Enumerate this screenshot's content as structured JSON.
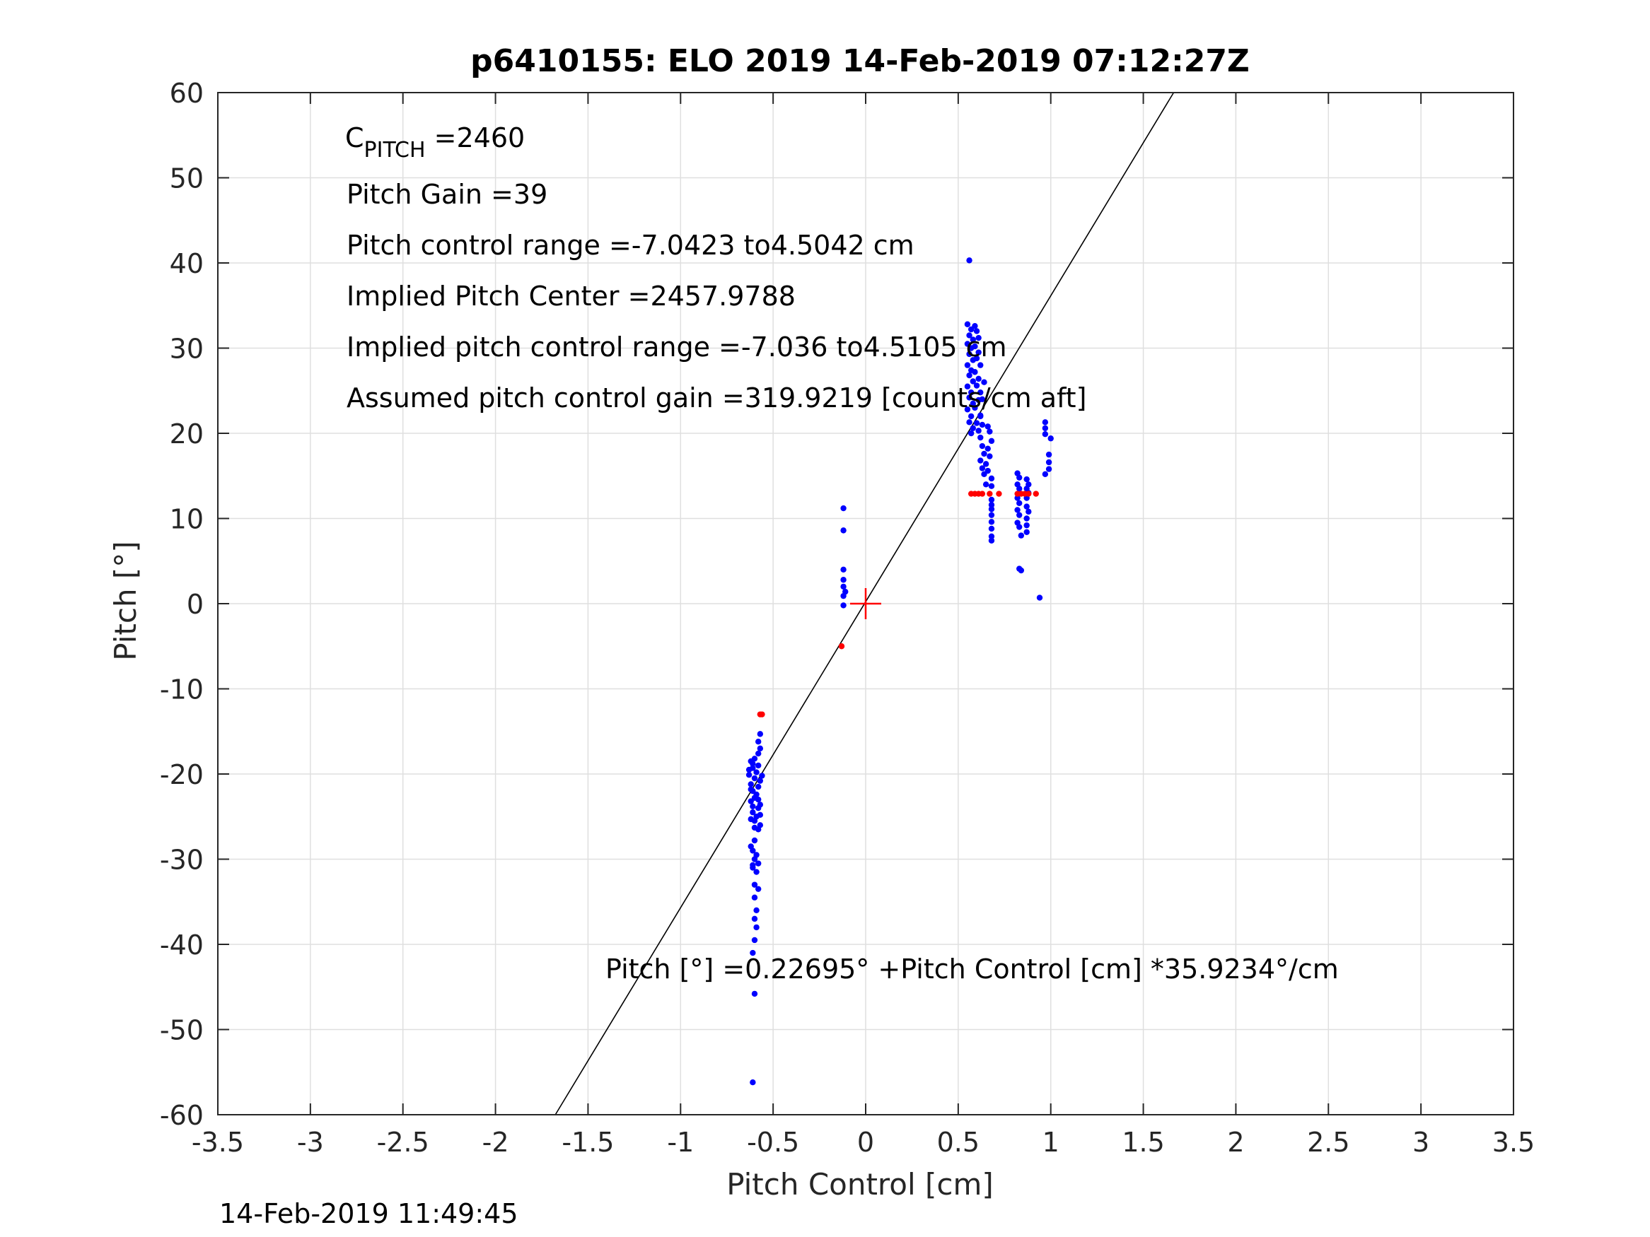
{
  "chart_data": {
    "type": "scatter",
    "title": "p6410155: ELO 2019 14-Feb-2019 07:12:27Z",
    "xlabel": "Pitch Control [cm]",
    "ylabel": "Pitch [°]",
    "xlim": [
      -3.5,
      3.5
    ],
    "ylim": [
      -60,
      60
    ],
    "xticks": [
      -3.5,
      -3,
      -2.5,
      -2,
      -1.5,
      -1,
      -0.5,
      0,
      0.5,
      1,
      1.5,
      2,
      2.5,
      3,
      3.5
    ],
    "xtick_labels": [
      "-3.5",
      "-3",
      "-2.5",
      "-2",
      "-1.5",
      "-1",
      "-0.5",
      "0",
      "0.5",
      "1",
      "1.5",
      "2",
      "2.5",
      "3",
      "3.5"
    ],
    "yticks": [
      -60,
      -50,
      -40,
      -30,
      -20,
      -10,
      0,
      10,
      20,
      30,
      40,
      50,
      60
    ],
    "ytick_labels": [
      "-60",
      "-50",
      "-40",
      "-30",
      "-20",
      "-10",
      "0",
      "10",
      "20",
      "30",
      "40",
      "50",
      "60"
    ],
    "grid": true,
    "annotations": {
      "c_pitch_main": "C",
      "c_pitch_sub": "PITCH",
      "c_pitch_value": " =2460",
      "pitch_gain": "Pitch Gain =39",
      "pitch_control_range": "Pitch control range =-7.0423 to4.5042 cm",
      "implied_pitch_center": "Implied Pitch Center =2457.9788",
      "implied_pitch_control_range": "Implied pitch control range =-7.036 to4.5105 cm",
      "assumed_pitch_control_gain": "Assumed pitch control gain =319.9219 [counts/cm aft]",
      "fit_equation": "Pitch [°] =0.22695° +Pitch Control [cm] *35.9234°/cm"
    },
    "fit_line": {
      "intercept": 0.22695,
      "slope": 35.9234,
      "color": "#000000"
    },
    "center_marker": {
      "x": 0,
      "y": 0,
      "color": "#ff0000"
    },
    "series": [
      {
        "color": "#0000ff",
        "points": [
          [
            -0.6,
            -18.2
          ],
          [
            -0.62,
            -18.5
          ],
          [
            -0.58,
            -19.0
          ],
          [
            -0.61,
            -19.3
          ],
          [
            -0.59,
            -19.8
          ],
          [
            -0.63,
            -20.1
          ],
          [
            -0.6,
            -20.5
          ],
          [
            -0.57,
            -20.8
          ],
          [
            -0.62,
            -21.2
          ],
          [
            -0.58,
            -21.5
          ],
          [
            -0.61,
            -22.0
          ],
          [
            -0.59,
            -22.4
          ],
          [
            -0.6,
            -22.8
          ],
          [
            -0.62,
            -23.2
          ],
          [
            -0.57,
            -23.6
          ],
          [
            -0.58,
            -24.0
          ],
          [
            -0.61,
            -24.5
          ],
          [
            -0.59,
            -25.0
          ],
          [
            -0.6,
            -25.5
          ],
          [
            -0.57,
            -26.0
          ],
          [
            -0.58,
            -26.5
          ],
          [
            -0.6,
            -27.8
          ],
          [
            -0.61,
            -29.0
          ],
          [
            -0.59,
            -29.5
          ],
          [
            -0.6,
            -30.0
          ],
          [
            -0.58,
            -30.5
          ],
          [
            -0.61,
            -31.0
          ],
          [
            -0.59,
            -31.5
          ],
          [
            -0.6,
            -33.0
          ],
          [
            -0.58,
            -33.5
          ],
          [
            -0.6,
            -34.5
          ],
          [
            -0.59,
            -36.0
          ],
          [
            -0.6,
            -37.0
          ],
          [
            -0.59,
            -38.0
          ],
          [
            -0.6,
            -39.5
          ],
          [
            -0.61,
            -41.0
          ],
          [
            -0.6,
            -45.8
          ],
          [
            -0.61,
            -56.2
          ],
          [
            -0.57,
            -15.3
          ],
          [
            -0.58,
            -16.2
          ],
          [
            -0.57,
            -17.0
          ],
          [
            -0.58,
            -17.6
          ],
          [
            -0.61,
            -18.8
          ],
          [
            -0.63,
            -19.5
          ],
          [
            -0.56,
            -20.2
          ],
          [
            -0.62,
            -21.8
          ],
          [
            -0.58,
            -23.0
          ],
          [
            -0.61,
            -23.8
          ],
          [
            -0.57,
            -24.8
          ],
          [
            -0.62,
            -25.3
          ],
          [
            -0.6,
            -26.3
          ],
          [
            -0.61,
            -30.7
          ],
          [
            -0.62,
            -28.5
          ],
          [
            -0.12,
            11.2
          ],
          [
            -0.12,
            8.6
          ],
          [
            -0.12,
            4.0
          ],
          [
            -0.12,
            2.8
          ],
          [
            -0.12,
            2.0
          ],
          [
            -0.11,
            1.4
          ],
          [
            -0.12,
            0.9
          ],
          [
            -0.12,
            -0.2
          ],
          [
            0.56,
            40.3
          ],
          [
            0.55,
            32.8
          ],
          [
            0.57,
            32.2
          ],
          [
            0.56,
            31.5
          ],
          [
            0.58,
            31.0
          ],
          [
            0.55,
            30.5
          ],
          [
            0.57,
            30.0
          ],
          [
            0.56,
            29.3
          ],
          [
            0.58,
            28.6
          ],
          [
            0.55,
            28.0
          ],
          [
            0.57,
            27.4
          ],
          [
            0.56,
            26.8
          ],
          [
            0.58,
            26.1
          ],
          [
            0.55,
            25.5
          ],
          [
            0.57,
            24.8
          ],
          [
            0.56,
            24.2
          ],
          [
            0.58,
            23.5
          ],
          [
            0.55,
            22.8
          ],
          [
            0.57,
            22.0
          ],
          [
            0.56,
            21.3
          ],
          [
            0.58,
            20.6
          ],
          [
            0.57,
            20.0
          ],
          [
            0.59,
            32.6
          ],
          [
            0.6,
            32.0
          ],
          [
            0.61,
            31.2
          ],
          [
            0.59,
            30.2
          ],
          [
            0.61,
            29.5
          ],
          [
            0.6,
            28.8
          ],
          [
            0.62,
            28.0
          ],
          [
            0.59,
            27.2
          ],
          [
            0.61,
            26.4
          ],
          [
            0.6,
            25.6
          ],
          [
            0.62,
            24.8
          ],
          [
            0.61,
            23.9
          ],
          [
            0.59,
            23.0
          ],
          [
            0.62,
            22.1
          ],
          [
            0.6,
            21.2
          ],
          [
            0.61,
            20.3
          ],
          [
            0.64,
            26.0
          ],
          [
            0.63,
            24.0
          ],
          [
            0.62,
            22.0
          ],
          [
            0.63,
            21.0
          ],
          [
            0.62,
            19.5
          ],
          [
            0.63,
            18.5
          ],
          [
            0.64,
            17.6
          ],
          [
            0.62,
            16.8
          ],
          [
            0.63,
            15.9
          ],
          [
            0.64,
            15.2
          ],
          [
            0.65,
            14.0
          ],
          [
            0.66,
            20.8
          ],
          [
            0.67,
            20.2
          ],
          [
            0.68,
            19.1
          ],
          [
            0.66,
            18.2
          ],
          [
            0.67,
            17.3
          ],
          [
            0.65,
            16.4
          ],
          [
            0.66,
            15.6
          ],
          [
            0.68,
            14.7
          ],
          [
            0.68,
            13.8
          ],
          [
            0.68,
            12.2
          ],
          [
            0.68,
            11.6
          ],
          [
            0.68,
            11.1
          ],
          [
            0.68,
            10.4
          ],
          [
            0.68,
            9.6
          ],
          [
            0.68,
            8.8
          ],
          [
            0.68,
            7.9
          ],
          [
            0.68,
            7.4
          ],
          [
            0.82,
            15.3
          ],
          [
            0.83,
            14.8
          ],
          [
            0.82,
            14.0
          ],
          [
            0.83,
            13.5
          ],
          [
            0.82,
            12.4
          ],
          [
            0.83,
            11.8
          ],
          [
            0.82,
            11.0
          ],
          [
            0.83,
            10.4
          ],
          [
            0.82,
            9.5
          ],
          [
            0.83,
            9.0
          ],
          [
            0.84,
            8.0
          ],
          [
            0.83,
            4.1
          ],
          [
            0.84,
            3.9
          ],
          [
            0.87,
            14.6
          ],
          [
            0.88,
            14.0
          ],
          [
            0.87,
            13.5
          ],
          [
            0.88,
            13.0
          ],
          [
            0.87,
            12.4
          ],
          [
            0.87,
            11.4
          ],
          [
            0.88,
            10.8
          ],
          [
            0.87,
            10.0
          ],
          [
            0.87,
            9.2
          ],
          [
            0.87,
            8.4
          ],
          [
            0.94,
            0.7
          ],
          [
            0.97,
            21.3
          ],
          [
            0.97,
            20.6
          ],
          [
            0.97,
            19.9
          ],
          [
            1.0,
            19.4
          ],
          [
            0.99,
            17.5
          ],
          [
            0.99,
            16.6
          ],
          [
            0.99,
            15.8
          ],
          [
            0.97,
            15.2
          ]
        ]
      },
      {
        "color": "#ff0000",
        "points": [
          [
            -0.57,
            -13.0
          ],
          [
            -0.56,
            -13.0
          ],
          [
            -0.13,
            -5.0
          ],
          [
            0.57,
            12.9
          ],
          [
            0.59,
            12.9
          ],
          [
            0.61,
            12.9
          ],
          [
            0.63,
            12.9
          ],
          [
            0.67,
            12.9
          ],
          [
            0.72,
            12.9
          ],
          [
            0.82,
            12.9
          ],
          [
            0.84,
            12.9
          ],
          [
            0.86,
            12.9
          ],
          [
            0.88,
            12.9
          ],
          [
            0.92,
            12.9
          ]
        ]
      }
    ]
  },
  "footer": {
    "timestamp": "14-Feb-2019 11:49:45"
  }
}
